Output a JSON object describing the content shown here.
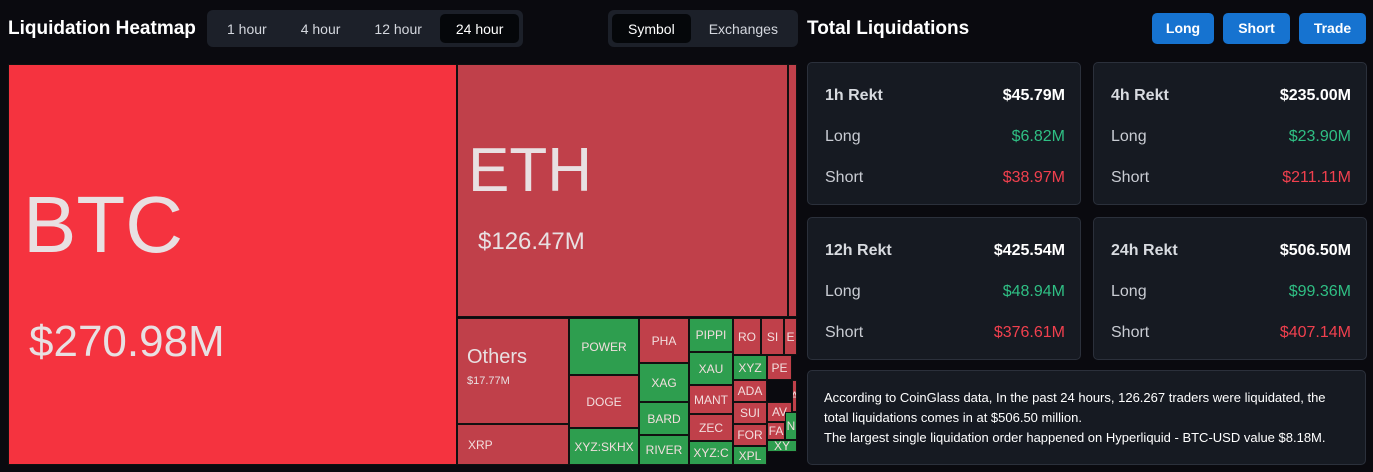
{
  "header": {
    "title": "Liquidation Heatmap",
    "time_tabs": [
      "1 hour",
      "4 hour",
      "12 hour",
      "24 hour"
    ],
    "active_time_tab": 3,
    "view_tabs": [
      "Symbol",
      "Exchanges"
    ],
    "active_view_tab": 0
  },
  "heatmap": {
    "tiles": [
      {
        "label": "BTC",
        "value": "$270.98M",
        "color": "#f5333f"
      },
      {
        "label": "ETH",
        "value": "$126.47M",
        "color": "#c0404a"
      },
      {
        "color": "#c0404a"
      },
      {
        "label": "Others",
        "value": "$17.77M",
        "color": "#c0404a"
      },
      {
        "label": "XRP",
        "color": "#c0404a"
      },
      {
        "label": "POWER",
        "color": "#2e9e4f"
      },
      {
        "label": "DOGE",
        "color": "#c0404a"
      },
      {
        "label": "XYZ:SKHX",
        "color": "#2e9e4f"
      },
      {
        "label": "PHA",
        "color": "#c0404a"
      },
      {
        "label": "XAG",
        "color": "#2e9e4f"
      },
      {
        "label": "BARD",
        "color": "#2e9e4f"
      },
      {
        "label": "RIVER",
        "color": "#2e9e4f"
      },
      {
        "label": "PIPPI",
        "color": "#2e9e4f"
      },
      {
        "label": "XAU",
        "color": "#2e9e4f"
      },
      {
        "label": "MANT",
        "color": "#c0404a"
      },
      {
        "label": "ZEC",
        "color": "#c0404a"
      },
      {
        "label": "XYZ:C",
        "color": "#2e9e4f"
      },
      {
        "label": "RO",
        "color": "#c0404a"
      },
      {
        "label": "SI",
        "color": "#c0404a"
      },
      {
        "label": "E",
        "color": "#c0404a"
      },
      {
        "label": "XYZ",
        "color": "#2e9e4f"
      },
      {
        "label": "PE",
        "color": "#c0404a"
      },
      {
        "label": "ADA",
        "color": "#c0404a"
      },
      {
        "label": "A",
        "color": "#c0404a"
      },
      {
        "label": "SUI",
        "color": "#c0404a"
      },
      {
        "label": "AV",
        "color": "#c0404a"
      },
      {
        "label": "FOR",
        "color": "#c0404a"
      },
      {
        "label": "FA",
        "color": "#c0404a"
      },
      {
        "label": "N",
        "color": "#2e9e4f"
      },
      {
        "label": "XY",
        "color": "#2e9e4f"
      },
      {
        "label": "XPL",
        "color": "#2e9e4f"
      }
    ]
  },
  "summary": {
    "title": "Total Liquidations",
    "buttons": [
      "Long",
      "Short",
      "Trade"
    ],
    "cards": [
      {
        "title": "1h Rekt",
        "total": "$45.79M",
        "rows": [
          {
            "label": "Long",
            "value": "$6.82M"
          },
          {
            "label": "Short",
            "value": "$38.97M"
          }
        ]
      },
      {
        "title": "4h Rekt",
        "total": "$235.00M",
        "rows": [
          {
            "label": "Long",
            "value": "$23.90M"
          },
          {
            "label": "Short",
            "value": "$211.11M"
          }
        ]
      },
      {
        "title": "12h Rekt",
        "total": "$425.54M",
        "rows": [
          {
            "label": "Long",
            "value": "$48.94M"
          },
          {
            "label": "Short",
            "value": "$376.61M"
          }
        ]
      },
      {
        "title": "24h Rekt",
        "total": "$506.50M",
        "rows": [
          {
            "label": "Long",
            "value": "$99.36M"
          },
          {
            "label": "Short",
            "value": "$407.14M"
          }
        ]
      }
    ],
    "note": [
      "According to CoinGlass data, In the past 24 hours, 126.267 traders were liquidated, the total liquidations comes in at $506.50 million.",
      "The largest single liquidation order happened on Hyperliquid - BTC-USD value $8.18M."
    ]
  }
}
